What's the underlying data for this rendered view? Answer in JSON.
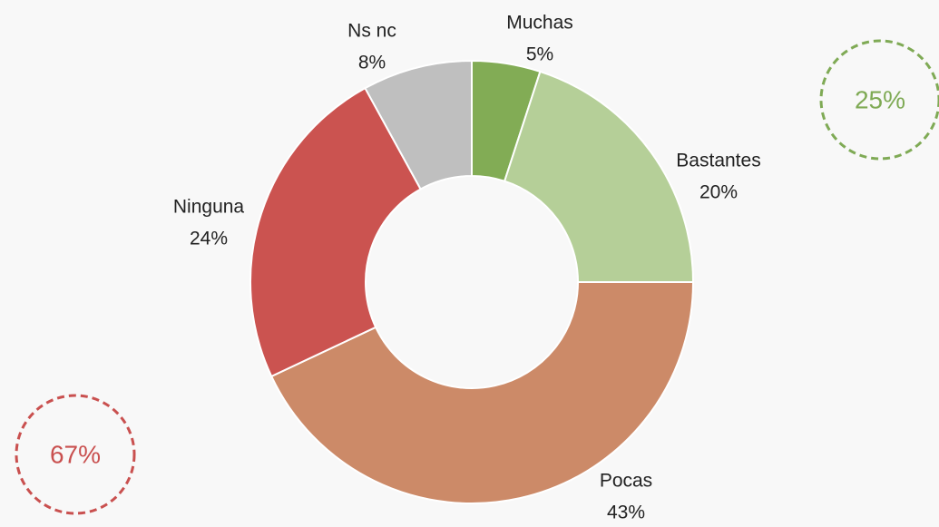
{
  "chart_data": {
    "type": "donut",
    "categories": [
      "Muchas",
      "Bastantes",
      "Pocas",
      "Ninguna",
      "Ns nc"
    ],
    "values": [
      5,
      20,
      43,
      24,
      8
    ],
    "value_labels": [
      "5%",
      "20%",
      "43%",
      "24%",
      "8%"
    ],
    "colors": [
      "#82ac55",
      "#b5cf98",
      "#cc8a68",
      "#cb5350",
      "#bfbfbf"
    ],
    "annotations": [
      {
        "text": "25%",
        "color": "#7faa55"
      },
      {
        "text": "67%",
        "color": "#c9504f"
      }
    ]
  }
}
